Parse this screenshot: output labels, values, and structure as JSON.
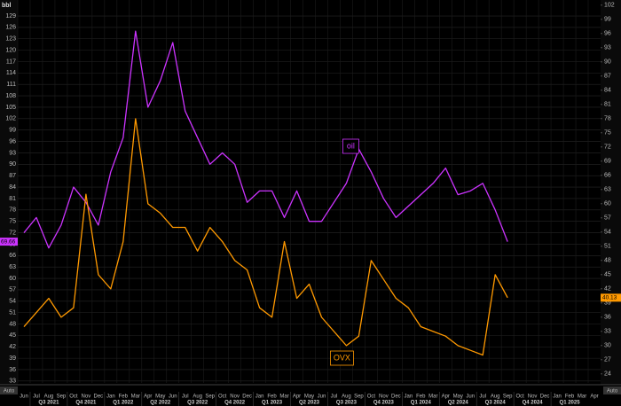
{
  "chart_data": {
    "type": "line",
    "ylabel": "bbl",
    "x": [
      "2021-06",
      "2021-07",
      "2021-08",
      "2021-09",
      "2021-10",
      "2021-11",
      "2021-12",
      "2022-01",
      "2022-02",
      "2022-03",
      "2022-04",
      "2022-05",
      "2022-06",
      "2022-07",
      "2022-08",
      "2022-09",
      "2022-10",
      "2022-11",
      "2022-12",
      "2023-01",
      "2023-02",
      "2023-03",
      "2023-04",
      "2023-05",
      "2023-06",
      "2023-07",
      "2023-08",
      "2023-09",
      "2023-10",
      "2023-11",
      "2023-12",
      "2024-01",
      "2024-02",
      "2024-03",
      "2024-04",
      "2024-05",
      "2024-06",
      "2024-07",
      "2024-08",
      "2024-09"
    ],
    "series": [
      {
        "name": "oil",
        "color": "#cc33ff",
        "axis": "y",
        "values": [
          72,
          76,
          68,
          74,
          84,
          80,
          74,
          88,
          97,
          125,
          105,
          112,
          122,
          104,
          97,
          90,
          93,
          90,
          80,
          83,
          83,
          76,
          83,
          75,
          75,
          80,
          85,
          94,
          88,
          81,
          76,
          79,
          82,
          85,
          89,
          82,
          83,
          85,
          78,
          69.66
        ]
      },
      {
        "name": "OVX",
        "color": "#ff9900",
        "axis": "y2",
        "values": [
          34,
          37,
          40,
          36,
          38,
          62,
          45,
          42,
          52,
          78,
          60,
          58,
          55,
          55,
          50,
          55,
          52,
          48,
          46,
          38,
          36,
          52,
          40,
          43,
          36,
          33,
          30,
          32,
          48,
          44,
          40,
          38,
          34,
          33,
          32,
          30,
          29,
          28,
          45,
          40.13
        ]
      }
    ],
    "xlim": [
      "2021-06",
      "2025-04"
    ],
    "xticks": [
      {
        "value": "2021-06",
        "label": "Jun"
      },
      {
        "value": "2021-07",
        "label": "Jul"
      },
      {
        "value": "2021-08",
        "label": "Aug"
      },
      {
        "value": "2021-09",
        "label": "Sep"
      },
      {
        "value": "2021-10",
        "label": "Oct"
      },
      {
        "value": "2021-11",
        "label": "Nov"
      },
      {
        "value": "2021-12",
        "label": "Dec"
      },
      {
        "value": "2022-01",
        "label": "Jan"
      },
      {
        "value": "2022-02",
        "label": "Feb"
      },
      {
        "value": "2022-03",
        "label": "Mar"
      },
      {
        "value": "2022-04",
        "label": "Apr"
      },
      {
        "value": "2022-05",
        "label": "May"
      },
      {
        "value": "2022-06",
        "label": "Jun"
      },
      {
        "value": "2022-07",
        "label": "Jul"
      },
      {
        "value": "2022-08",
        "label": "Aug"
      },
      {
        "value": "2022-09",
        "label": "Sep"
      },
      {
        "value": "2022-10",
        "label": "Oct"
      },
      {
        "value": "2022-11",
        "label": "Nov"
      },
      {
        "value": "2022-12",
        "label": "Dec"
      },
      {
        "value": "2023-01",
        "label": "Jan"
      },
      {
        "value": "2023-02",
        "label": "Feb"
      },
      {
        "value": "2023-03",
        "label": "Mar"
      },
      {
        "value": "2023-04",
        "label": "Apr"
      },
      {
        "value": "2023-05",
        "label": "May"
      },
      {
        "value": "2023-06",
        "label": "Jun"
      },
      {
        "value": "2023-07",
        "label": "Jul"
      },
      {
        "value": "2023-08",
        "label": "Aug"
      },
      {
        "value": "2023-09",
        "label": "Sep"
      },
      {
        "value": "2023-10",
        "label": "Oct"
      },
      {
        "value": "2023-11",
        "label": "Nov"
      },
      {
        "value": "2023-12",
        "label": "Dec"
      },
      {
        "value": "2024-01",
        "label": "Jan"
      },
      {
        "value": "2024-02",
        "label": "Feb"
      },
      {
        "value": "2024-03",
        "label": "Mar"
      },
      {
        "value": "2024-04",
        "label": "Apr"
      },
      {
        "value": "2024-05",
        "label": "May"
      },
      {
        "value": "2024-06",
        "label": "Jun"
      },
      {
        "value": "2024-07",
        "label": "Jul"
      },
      {
        "value": "2024-08",
        "label": "Aug"
      },
      {
        "value": "2024-09",
        "label": "Sep"
      },
      {
        "value": "2024-10",
        "label": "Oct"
      },
      {
        "value": "2024-11",
        "label": "Nov"
      },
      {
        "value": "2024-12",
        "label": "Dec"
      },
      {
        "value": "2025-01",
        "label": "Jan"
      },
      {
        "value": "2025-02",
        "label": "Feb"
      },
      {
        "value": "2025-03",
        "label": "Mar"
      },
      {
        "value": "2025-04",
        "label": "Apr"
      }
    ],
    "quarters": [
      {
        "value": "2021-07",
        "label": "Q3 2021"
      },
      {
        "value": "2021-10",
        "label": "Q4 2021"
      },
      {
        "value": "2022-01",
        "label": "Q1 2022"
      },
      {
        "value": "2022-04",
        "label": "Q2 2022"
      },
      {
        "value": "2022-07",
        "label": "Q3 2022"
      },
      {
        "value": "2022-10",
        "label": "Q4 2022"
      },
      {
        "value": "2023-01",
        "label": "Q1 2023"
      },
      {
        "value": "2023-04",
        "label": "Q2 2023"
      },
      {
        "value": "2023-07",
        "label": "Q3 2023"
      },
      {
        "value": "2023-10",
        "label": "Q4 2023"
      },
      {
        "value": "2024-01",
        "label": "Q1 2024"
      },
      {
        "value": "2024-04",
        "label": "Q2 2024"
      },
      {
        "value": "2024-07",
        "label": "Q3 2024"
      },
      {
        "value": "2024-10",
        "label": "Q4 2024"
      },
      {
        "value": "2025-01",
        "label": "Q1 2025"
      }
    ],
    "ylim": [
      32.5,
      133.2
    ],
    "yticks": [
      33,
      36,
      39,
      42,
      45,
      48,
      51,
      54,
      57,
      60,
      63,
      66,
      69,
      72,
      75,
      78,
      81,
      84,
      87,
      90,
      93,
      96,
      99,
      102,
      105,
      108,
      111,
      114,
      117,
      120,
      123,
      126,
      129
    ],
    "y2lim": [
      22.1,
      103.1
    ],
    "y2ticks": [
      24,
      27,
      30,
      33,
      36,
      39,
      42,
      45,
      48,
      51,
      54,
      57,
      60,
      63,
      66,
      69,
      72,
      75,
      78,
      81,
      84,
      87,
      90,
      93,
      96,
      99,
      102
    ],
    "grid": true
  },
  "controls": [
    "Auto",
    "Auto"
  ]
}
